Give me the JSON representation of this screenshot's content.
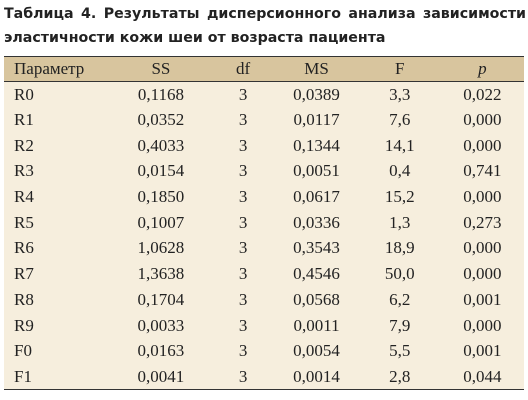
{
  "caption": "Таблица 4. Результаты дисперсионного анализа зависимости эластичности кожи шеи от возраста пациента",
  "table": {
    "header": [
      "Параметр",
      "SS",
      "df",
      "MS",
      "F",
      "p"
    ],
    "rows": [
      [
        "R0",
        "0,1168",
        "3",
        "0,0389",
        "3,3",
        "0,022"
      ],
      [
        "R1",
        "0,0352",
        "3",
        "0,0117",
        "7,6",
        "0,000"
      ],
      [
        "R2",
        "0,4033",
        "3",
        "0,1344",
        "14,1",
        "0,000"
      ],
      [
        "R3",
        "0,0154",
        "3",
        "0,0051",
        "0,4",
        "0,741"
      ],
      [
        "R4",
        "0,1850",
        "3",
        "0,0617",
        "15,2",
        "0,000"
      ],
      [
        "R5",
        "0,1007",
        "3",
        "0,0336",
        "1,3",
        "0,273"
      ],
      [
        "R6",
        "1,0628",
        "3",
        "0,3543",
        "18,9",
        "0,000"
      ],
      [
        "R7",
        "1,3638",
        "3",
        "0,4546",
        "50,0",
        "0,000"
      ],
      [
        "R8",
        "0,1704",
        "3",
        "0,0568",
        "6,2",
        "0,001"
      ],
      [
        "R9",
        "0,0033",
        "3",
        "0,0011",
        "7,9",
        "0,000"
      ],
      [
        "F0",
        "0,0163",
        "3",
        "0,0054",
        "5,5",
        "0,001"
      ],
      [
        "F1",
        "0,0041",
        "3",
        "0,0014",
        "2,8",
        "0,044"
      ]
    ]
  }
}
